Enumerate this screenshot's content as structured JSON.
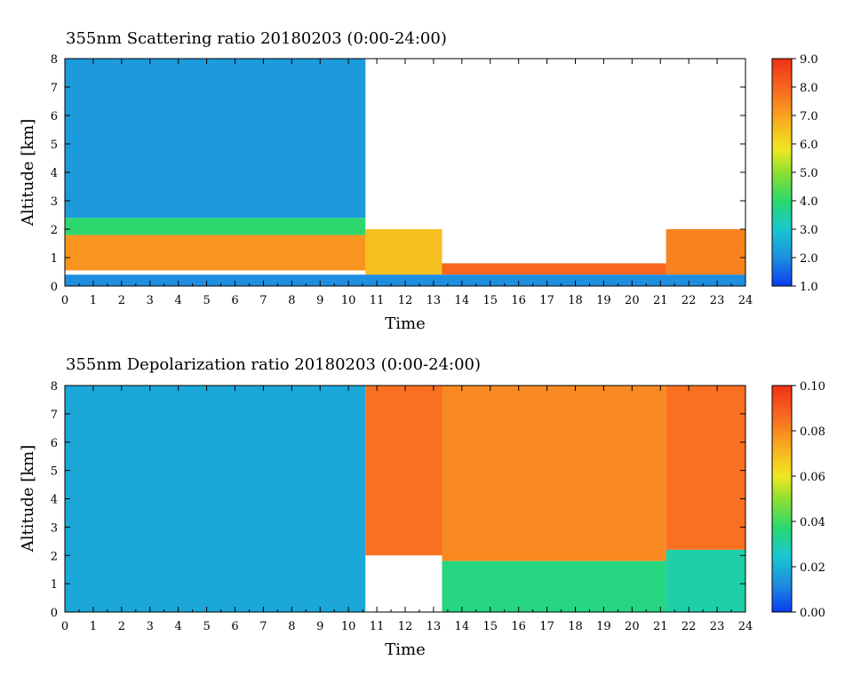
{
  "chart_data": [
    {
      "type": "heatmap",
      "title": "355nm Scattering ratio  20180203 (0:00-24:00)",
      "xlabel": "Time",
      "ylabel": "Altitude [km]",
      "xlim": [
        0,
        24
      ],
      "ylim": [
        0,
        8
      ],
      "x_ticks": [
        "0",
        "1",
        "2",
        "3",
        "4",
        "5",
        "6",
        "7",
        "8",
        "9",
        "10",
        "11",
        "12",
        "13",
        "14",
        "15",
        "16",
        "17",
        "18",
        "19",
        "20",
        "21",
        "22",
        "23",
        "24"
      ],
      "y_ticks": [
        "0",
        "1",
        "2",
        "3",
        "4",
        "5",
        "6",
        "7",
        "8"
      ],
      "colorbar": {
        "min": 1.0,
        "max": 9.0,
        "ticks": [
          "1.0",
          "2.0",
          "3.0",
          "4.0",
          "5.0",
          "6.0",
          "7.0",
          "8.0",
          "9.0"
        ]
      },
      "regions": [
        {
          "x": [
            0,
            10.6
          ],
          "y": [
            0.55,
            1.8
          ],
          "value": 7.2
        },
        {
          "x": [
            0,
            10.6
          ],
          "y": [
            1.8,
            2.4
          ],
          "value": 4.0
        },
        {
          "x": [
            0,
            10.6
          ],
          "y": [
            2.4,
            8
          ],
          "value": 2.2
        },
        {
          "x": [
            10.6,
            13.3
          ],
          "y": [
            0.4,
            2.0
          ],
          "value": 6.5
        },
        {
          "x": [
            13.3,
            24
          ],
          "y": [
            0.5,
            1.8
          ],
          "value": "none"
        },
        {
          "x": [
            13.3,
            21.2
          ],
          "y": [
            0.4,
            0.8
          ],
          "value": 8.0
        },
        {
          "x": [
            21.2,
            24
          ],
          "y": [
            0.4,
            2.0
          ],
          "value": 7.5
        },
        {
          "x": [
            0,
            24
          ],
          "y": [
            0,
            0.4
          ],
          "value": 2.0
        }
      ]
    },
    {
      "type": "heatmap",
      "title": "355nm Depolarization ratio  20180203 (0:00-24:00)",
      "xlabel": "Time",
      "ylabel": "Altitude [km]",
      "xlim": [
        0,
        24
      ],
      "ylim": [
        0,
        8
      ],
      "x_ticks": [
        "0",
        "1",
        "2",
        "3",
        "4",
        "5",
        "6",
        "7",
        "8",
        "9",
        "10",
        "11",
        "12",
        "13",
        "14",
        "15",
        "16",
        "17",
        "18",
        "19",
        "20",
        "21",
        "22",
        "23",
        "24"
      ],
      "y_ticks": [
        "0",
        "1",
        "2",
        "3",
        "4",
        "5",
        "6",
        "7",
        "8"
      ],
      "colorbar": {
        "min": 0.0,
        "max": 0.1,
        "ticks": [
          "0.00",
          "0.02",
          "0.04",
          "0.06",
          "0.08",
          "0.10"
        ]
      },
      "regions": [
        {
          "x": [
            0,
            10.6
          ],
          "y": [
            0,
            8
          ],
          "value": 0.018
        },
        {
          "x": [
            10.6,
            13.3
          ],
          "y": [
            2.0,
            8
          ],
          "value": 0.085
        },
        {
          "x": [
            13.3,
            21.2
          ],
          "y": [
            1.8,
            8
          ],
          "value": 0.08
        },
        {
          "x": [
            13.3,
            21.2
          ],
          "y": [
            0,
            1.8
          ],
          "value": 0.035
        },
        {
          "x": [
            21.2,
            24
          ],
          "y": [
            2.2,
            8
          ],
          "value": 0.085
        },
        {
          "x": [
            21.2,
            24
          ],
          "y": [
            0,
            2.2
          ],
          "value": 0.03
        }
      ]
    }
  ]
}
